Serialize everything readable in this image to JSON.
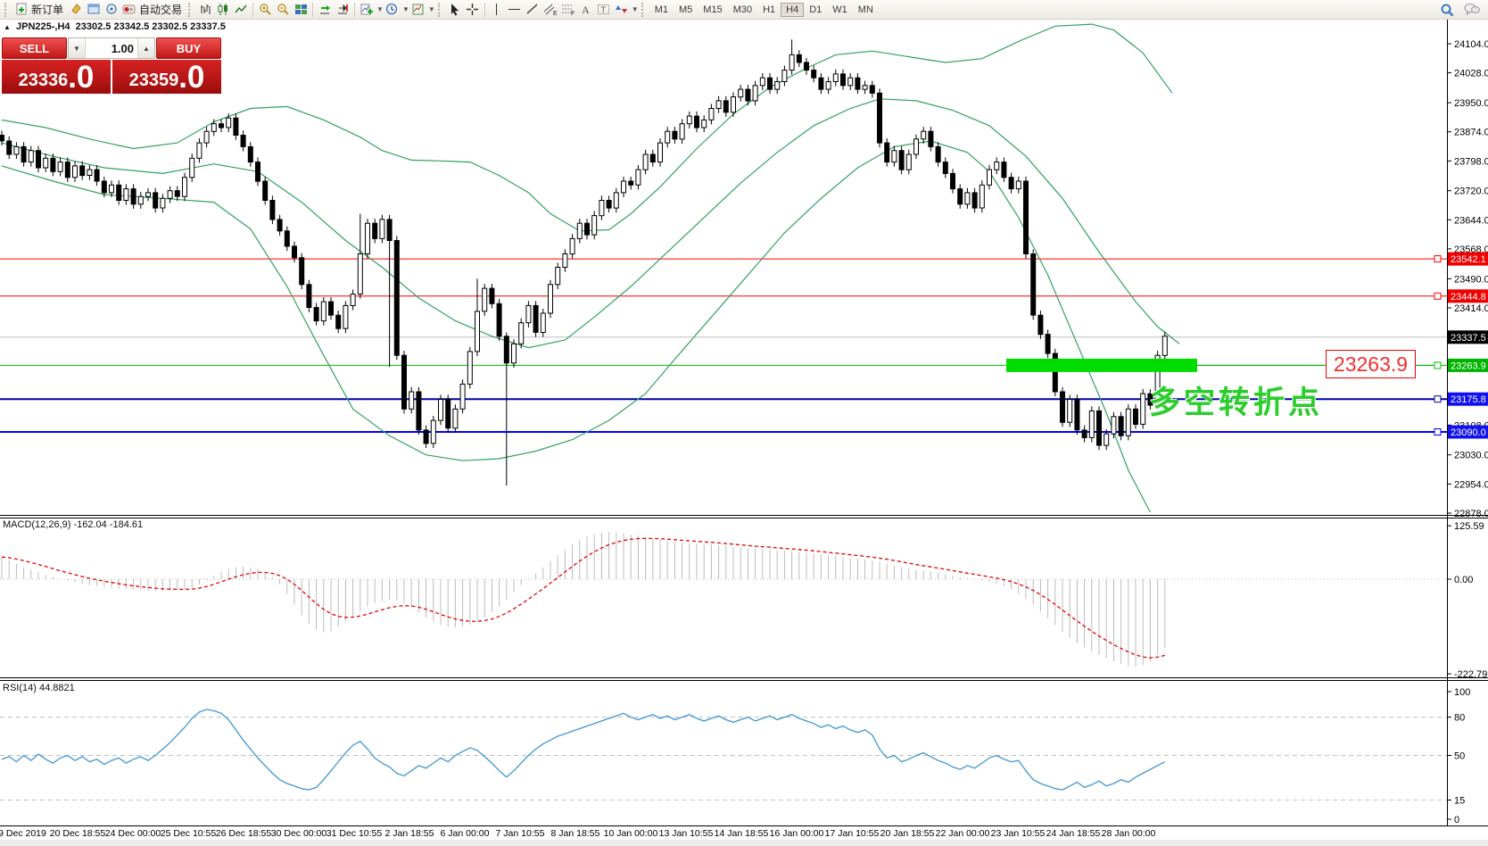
{
  "toolbar": {
    "new_order_label": "新订单",
    "autotrading_label": "自动交易",
    "timeframes": [
      "M1",
      "M5",
      "M15",
      "M30",
      "H1",
      "H4",
      "D1",
      "W1",
      "MN"
    ],
    "active_timeframe": "H4"
  },
  "symbol_bar": {
    "symbol": "JPN225-,H4",
    "ohlc": "23302.5 23342.5 23302.5 23337.5"
  },
  "trade_panel": {
    "sell_label": "SELL",
    "buy_label": "BUY",
    "volume": "1.00",
    "sell_price": "23336",
    "sell_price_frac": ".0",
    "buy_price": "23359",
    "buy_price_frac": ".0"
  },
  "indicators": {
    "macd_label": "MACD(12,26,9)",
    "macd_values": "-162.04 -184.61",
    "rsi_label": "RSI(14)",
    "rsi_value": "44.8821"
  },
  "annotations": {
    "price_callout": "23263.9",
    "turning_point_text": "多空转折点",
    "highlight_color": "#00dc00",
    "callout_color": "#f03030"
  },
  "chart_data": {
    "type": "candlestick+indicators",
    "symbol": "JPN225-",
    "timeframe": "H4",
    "price_axis_ticks": [
      24104.0,
      24028.0,
      23950.0,
      23874.0,
      23798.0,
      23720.0,
      23644.0,
      23568.0,
      23490.0,
      23414.0,
      23108.0,
      23030.0,
      22954.0,
      22878.0
    ],
    "price_badges": [
      {
        "value": 23542.1,
        "color": "#f00000"
      },
      {
        "value": 23444.8,
        "color": "#f00000"
      },
      {
        "value": 23337.5,
        "color": "#000000"
      },
      {
        "value": 23263.9,
        "color": "#00b400"
      },
      {
        "value": 23175.8,
        "color": "#1212f0"
      },
      {
        "value": 23090.0,
        "color": "#1212f0"
      }
    ],
    "hlines": [
      {
        "price": 23542.1,
        "color": "#ff0000",
        "width": 1,
        "marker": true
      },
      {
        "price": 23444.8,
        "color": "#ff0000",
        "width": 1,
        "marker": true
      },
      {
        "price": 23337.5,
        "color": "#bdbdbd",
        "width": 1,
        "marker": false
      },
      {
        "price": 23263.9,
        "color": "#00c000",
        "width": 1,
        "marker": true
      },
      {
        "price": 23175.8,
        "color": "#0000a8",
        "width": 2,
        "marker": true
      },
      {
        "price": 23090.0,
        "color": "#0000ff",
        "width": 2,
        "marker": true
      }
    ],
    "candles": {
      "closes": [
        23850,
        23815,
        23835,
        23795,
        23825,
        23780,
        23805,
        23770,
        23795,
        23755,
        23785,
        23760,
        23775,
        23745,
        23715,
        23735,
        23695,
        23725,
        23685,
        23705,
        23715,
        23675,
        23700,
        23720,
        23705,
        23755,
        23805,
        23845,
        23875,
        23895,
        23885,
        23910,
        23865,
        23835,
        23795,
        23745,
        23695,
        23645,
        23615,
        23575,
        23545,
        23475,
        23415,
        23380,
        23430,
        23395,
        23360,
        23420,
        23450,
        23555,
        23635,
        23595,
        23645,
        23590,
        23290,
        23150,
        23195,
        23095,
        23060,
        23120,
        23175,
        23100,
        23150,
        23215,
        23300,
        23405,
        23465,
        23425,
        23340,
        23270,
        23320,
        23375,
        23420,
        23350,
        23400,
        23475,
        23520,
        23555,
        23595,
        23635,
        23605,
        23655,
        23695,
        23675,
        23715,
        23745,
        23735,
        23775,
        23815,
        23795,
        23845,
        23875,
        23855,
        23895,
        23915,
        23885,
        23905,
        23935,
        23955,
        23925,
        23965,
        23985,
        23955,
        23995,
        24015,
        23985,
        24005,
        24035,
        24075,
        24055,
        24035,
        24015,
        23985,
        24005,
        24025,
        23995,
        24015,
        23985,
        23995,
        23975,
        23845,
        23795,
        23825,
        23775,
        23815,
        23855,
        23875,
        23835,
        23795,
        23765,
        23725,
        23685,
        23715,
        23675,
        23735,
        23775,
        23795,
        23755,
        23725,
        23745,
        23555,
        23395,
        23345,
        23295,
        23195,
        23115,
        23175,
        23095,
        23075,
        23145,
        23055,
        23085,
        23130,
        23080,
        23150,
        23110,
        23190,
        23160,
        23290,
        23340
      ],
      "wick_overrides": {
        "49": {
          "high": 23660
        },
        "53": {
          "low": 23260
        },
        "65": {
          "high": 23490
        },
        "69": {
          "low": 22950,
          "high": 23350
        },
        "108": {
          "high": 24115
        }
      }
    },
    "bollinger": {
      "upper": [
        [
          0,
          23905
        ],
        [
          6,
          23885
        ],
        [
          12,
          23855
        ],
        [
          18,
          23830
        ],
        [
          24,
          23845
        ],
        [
          29,
          23900
        ],
        [
          34,
          23935
        ],
        [
          39,
          23940
        ],
        [
          44,
          23905
        ],
        [
          49,
          23860
        ],
        [
          52,
          23825
        ],
        [
          56,
          23800
        ],
        [
          60,
          23798
        ],
        [
          64,
          23795
        ],
        [
          68,
          23760
        ],
        [
          72,
          23715
        ],
        [
          75,
          23660
        ],
        [
          79,
          23615
        ],
        [
          83,
          23618
        ],
        [
          86,
          23660
        ],
        [
          90,
          23730
        ],
        [
          95,
          23830
        ],
        [
          100,
          23920
        ],
        [
          105,
          23990
        ],
        [
          110,
          24040
        ],
        [
          114,
          24075
        ],
        [
          119,
          24085
        ],
        [
          124,
          24070
        ],
        [
          129,
          24055
        ],
        [
          134,
          24065
        ],
        [
          139,
          24110
        ],
        [
          144,
          24150
        ],
        [
          149,
          24155
        ],
        [
          152,
          24140
        ],
        [
          156,
          24080
        ],
        [
          160,
          23975
        ]
      ],
      "middle": [
        [
          0,
          23845
        ],
        [
          7,
          23810
        ],
        [
          14,
          23780
        ],
        [
          22,
          23765
        ],
        [
          29,
          23790
        ],
        [
          35,
          23770
        ],
        [
          41,
          23690
        ],
        [
          47,
          23590
        ],
        [
          52,
          23520
        ],
        [
          57,
          23440
        ],
        [
          62,
          23380
        ],
        [
          67,
          23340
        ],
        [
          72,
          23310
        ],
        [
          77,
          23330
        ],
        [
          81,
          23390
        ],
        [
          86,
          23470
        ],
        [
          91,
          23560
        ],
        [
          96,
          23650
        ],
        [
          101,
          23740
        ],
        [
          106,
          23820
        ],
        [
          111,
          23890
        ],
        [
          116,
          23935
        ],
        [
          120,
          23960
        ],
        [
          125,
          23955
        ],
        [
          130,
          23930
        ],
        [
          135,
          23890
        ],
        [
          140,
          23810
        ],
        [
          145,
          23700
        ],
        [
          150,
          23560
        ],
        [
          155,
          23430
        ],
        [
          158,
          23365
        ],
        [
          161,
          23320
        ]
      ],
      "lower": [
        [
          0,
          23785
        ],
        [
          7,
          23745
        ],
        [
          14,
          23710
        ],
        [
          22,
          23700
        ],
        [
          29,
          23690
        ],
        [
          34,
          23620
        ],
        [
          39,
          23470
        ],
        [
          44,
          23290
        ],
        [
          48,
          23150
        ],
        [
          53,
          23080
        ],
        [
          58,
          23030
        ],
        [
          63,
          23015
        ],
        [
          68,
          23020
        ],
        [
          73,
          23040
        ],
        [
          78,
          23070
        ],
        [
          83,
          23120
        ],
        [
          88,
          23190
        ],
        [
          92,
          23280
        ],
        [
          97,
          23390
        ],
        [
          102,
          23500
        ],
        [
          107,
          23610
        ],
        [
          112,
          23700
        ],
        [
          117,
          23780
        ],
        [
          122,
          23835
        ],
        [
          127,
          23850
        ],
        [
          132,
          23820
        ],
        [
          135,
          23770
        ],
        [
          139,
          23650
        ],
        [
          143,
          23500
        ],
        [
          147,
          23320
        ],
        [
          151,
          23140
        ],
        [
          154,
          22990
        ],
        [
          157,
          22880
        ]
      ]
    },
    "macd": {
      "axis_ticks": [
        {
          "label": "125.59",
          "value": 125.59
        },
        {
          "label": "0.00",
          "value": 0
        },
        {
          "label": "-222.79",
          "value": -222.79
        }
      ],
      "signal_period": 9,
      "values": [
        52,
        44,
        36,
        28,
        22,
        16,
        10,
        5,
        0,
        -4,
        -8,
        -11,
        -14,
        -16,
        -18,
        -20,
        -22,
        -24,
        -25,
        -26,
        -27,
        -28,
        -28,
        -27,
        -26,
        -24,
        -20,
        -12,
        -2,
        8,
        18,
        24,
        28,
        30,
        28,
        24,
        16,
        4,
        -12,
        -35,
        -60,
        -85,
        -105,
        -118,
        -125,
        -122,
        -112,
        -100,
        -88,
        -75,
        -64,
        -56,
        -51,
        -49,
        -50,
        -56,
        -66,
        -78,
        -90,
        -100,
        -108,
        -112,
        -113,
        -111,
        -107,
        -100,
        -90,
        -78,
        -64,
        -48,
        -30,
        -14,
        0,
        14,
        28,
        42,
        56,
        70,
        82,
        92,
        100,
        106,
        110,
        111,
        110,
        108,
        105,
        102,
        98,
        95,
        92,
        90,
        88,
        86,
        85,
        84,
        83,
        82,
        80,
        78,
        76,
        74,
        73,
        72,
        71,
        70,
        68,
        67,
        66,
        64,
        62,
        60,
        58,
        56,
        54,
        52,
        50,
        48,
        46,
        44,
        40,
        36,
        32,
        28,
        25,
        22,
        20,
        18,
        15,
        12,
        8,
        5,
        2,
        0,
        -3,
        -6,
        -10,
        -16,
        -24,
        -34,
        -46,
        -60,
        -76,
        -92,
        -108,
        -124,
        -138,
        -150,
        -160,
        -170,
        -178,
        -186,
        -193,
        -199,
        -204,
        -206,
        -202,
        -193,
        -178,
        -162
      ]
    },
    "rsi": {
      "axis_ticks": [
        100,
        80,
        50,
        15,
        0
      ],
      "levels": [
        80,
        50,
        15
      ],
      "values": [
        47,
        49,
        45,
        50,
        46,
        51,
        47,
        44,
        48,
        50,
        46,
        49,
        45,
        47,
        43,
        46,
        48,
        44,
        47,
        49,
        46,
        50,
        55,
        60,
        66,
        72,
        79,
        84,
        86,
        85,
        83,
        78,
        70,
        62,
        55,
        48,
        42,
        36,
        31,
        28,
        26,
        24,
        23,
        25,
        31,
        38,
        45,
        52,
        58,
        61,
        55,
        48,
        44,
        41,
        36,
        34,
        38,
        42,
        40,
        44,
        48,
        45,
        50,
        53,
        56,
        54,
        49,
        44,
        38,
        33,
        38,
        44,
        50,
        55,
        59,
        62,
        65,
        67,
        69,
        71,
        73,
        75,
        77,
        79,
        81,
        83,
        80,
        78,
        80,
        82,
        79,
        81,
        78,
        80,
        82,
        79,
        77,
        79,
        81,
        78,
        76,
        78,
        80,
        77,
        79,
        81,
        78,
        80,
        82,
        79,
        77,
        75,
        72,
        74,
        71,
        73,
        70,
        68,
        70,
        66,
        55,
        48,
        50,
        45,
        47,
        50,
        52,
        49,
        46,
        44,
        41,
        39,
        42,
        40,
        44,
        48,
        50,
        47,
        45,
        46,
        38,
        31,
        28,
        26,
        24,
        23,
        26,
        29,
        25,
        27,
        30,
        26,
        28,
        31,
        29,
        33,
        36,
        39,
        42,
        45
      ]
    },
    "dates": [
      "9 Dec 2019",
      "20 Dec 18:55",
      "24 Dec 00:00",
      "25 Dec 10:55",
      "26 Dec 18:55",
      "30 Dec 00:00",
      "31 Dec 10:55",
      "2 Jan 18:55",
      "6 Jan 00:00",
      "7 Jan 10:55",
      "8 Jan 18:55",
      "10 Jan 00:00",
      "13 Jan 10:55",
      "14 Jan 18:55",
      "16 Jan 00:00",
      "17 Jan 10:55",
      "20 Jan 18:55",
      "22 Jan 00:00",
      "23 Jan 10:55",
      "24 Jan 18:55",
      "28 Jan 00:00"
    ],
    "colors": {
      "bollinger": "#35a060",
      "bull_candle": "#ffffff",
      "bear_candle": "#000000",
      "macd_histogram": "#bcbcbc",
      "macd_signal": "#e80000",
      "rsi_line": "#4296d2",
      "level_dashed": "#bfbfbf"
    }
  }
}
